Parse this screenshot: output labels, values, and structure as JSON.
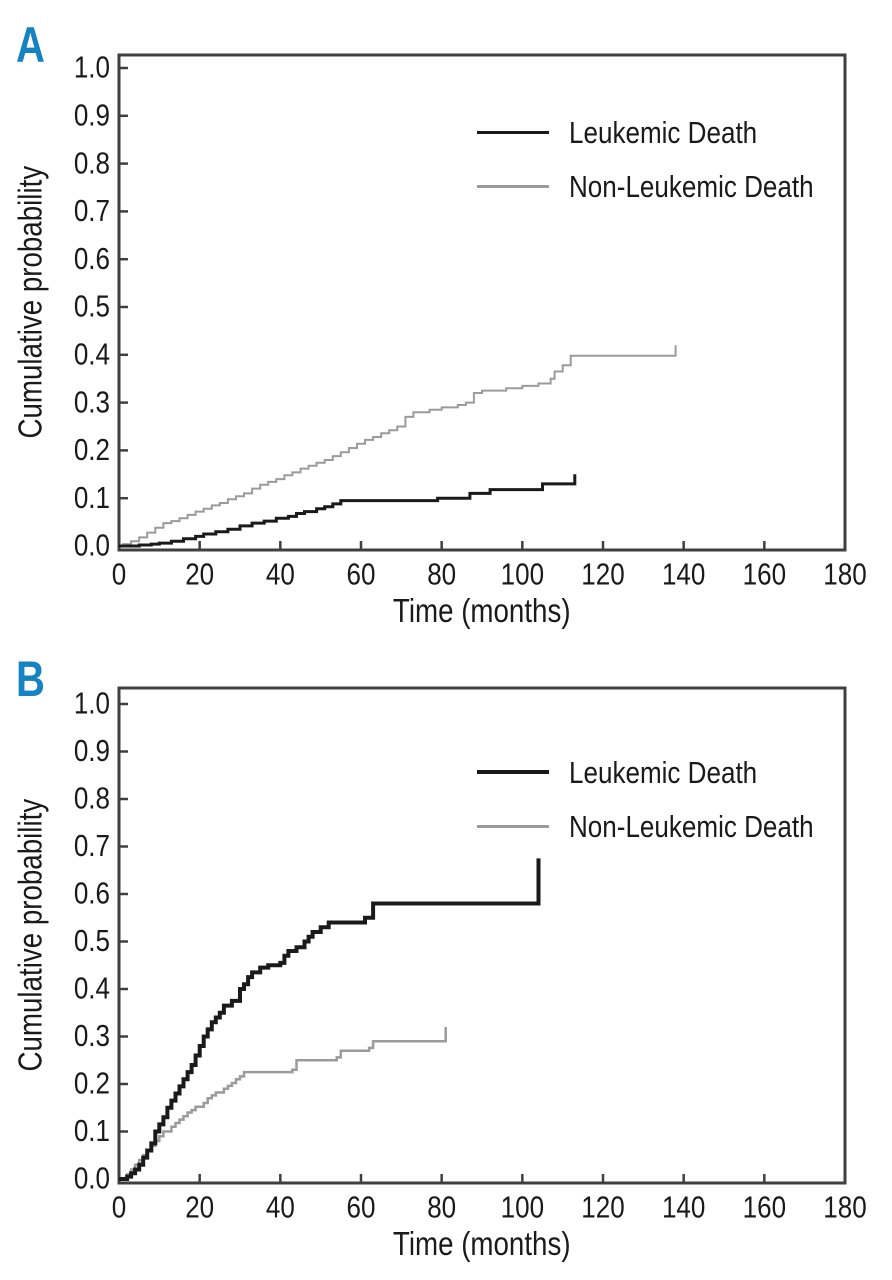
{
  "background": "#ffffff",
  "colors": {
    "panel_label": "#1583c1",
    "axis": "#3f3f3f",
    "black_series": "#1a1a1a",
    "gray_series": "#9b9b9b"
  },
  "panels": [
    {
      "label": "A",
      "y_axis_label": "Cumulative probability",
      "x_axis_label": "Time (months)",
      "legend": [
        {
          "label": "Leukemic Death"
        },
        {
          "label": "Non-Leukemic Death"
        }
      ]
    },
    {
      "label": "B",
      "y_axis_label": "Cumulative probability",
      "x_axis_label": "Time (months)",
      "legend": [
        {
          "label": "Leukemic Death"
        },
        {
          "label": "Non-Leukemic Death"
        }
      ]
    }
  ],
  "chart_data": [
    {
      "panel": "A",
      "type": "line",
      "subtype": "step",
      "title": "",
      "xlabel": "Time (months)",
      "ylabel": "Cumulative probability",
      "xlim": [
        0,
        180
      ],
      "ylim": [
        0.0,
        1.0
      ],
      "xticks": [
        0,
        20,
        40,
        60,
        80,
        100,
        120,
        140,
        160,
        180
      ],
      "xtick_labels": [
        "0",
        "20",
        "40",
        "60",
        "80",
        "100",
        "120",
        "140",
        "160",
        "180"
      ],
      "yticks": [
        0.0,
        0.1,
        0.2,
        0.3,
        0.4,
        0.5,
        0.6,
        0.7,
        0.8,
        0.9,
        1.0
      ],
      "ytick_labels": [
        "0.0",
        "0.1",
        "0.2",
        "0.3",
        "0.4",
        "0.5",
        "0.6",
        "0.7",
        "0.8",
        "0.9",
        "1.0"
      ],
      "grid": false,
      "legend_position": "upper-right-inside",
      "series": [
        {
          "name": "Leukemic Death",
          "color": "#1a1a1a",
          "line_width": 3,
          "points": [
            [
              5,
              0.002
            ],
            [
              8,
              0.004
            ],
            [
              10,
              0.006
            ],
            [
              13,
              0.01
            ],
            [
              16,
              0.015
            ],
            [
              19,
              0.02
            ],
            [
              21,
              0.025
            ],
            [
              24,
              0.03
            ],
            [
              27,
              0.035
            ],
            [
              30,
              0.042
            ],
            [
              33,
              0.048
            ],
            [
              36,
              0.052
            ],
            [
              39,
              0.058
            ],
            [
              42,
              0.062
            ],
            [
              44,
              0.068
            ],
            [
              46,
              0.072
            ],
            [
              49,
              0.078
            ],
            [
              51,
              0.082
            ],
            [
              53,
              0.088
            ],
            [
              55,
              0.095
            ],
            [
              79,
              0.1
            ],
            [
              87,
              0.11
            ],
            [
              92,
              0.118
            ],
            [
              105,
              0.13
            ],
            [
              113,
              0.15
            ]
          ]
        },
        {
          "name": "Non-Leukemic Death",
          "color": "#9b9b9b",
          "line_width": 2,
          "points": [
            [
              1,
              0.004
            ],
            [
              3,
              0.01
            ],
            [
              5,
              0.018
            ],
            [
              7,
              0.028
            ],
            [
              9,
              0.038
            ],
            [
              11,
              0.048
            ],
            [
              13,
              0.052
            ],
            [
              15,
              0.058
            ],
            [
              17,
              0.065
            ],
            [
              19,
              0.072
            ],
            [
              21,
              0.078
            ],
            [
              23,
              0.085
            ],
            [
              25,
              0.09
            ],
            [
              27,
              0.098
            ],
            [
              29,
              0.104
            ],
            [
              31,
              0.11
            ],
            [
              33,
              0.12
            ],
            [
              35,
              0.128
            ],
            [
              37,
              0.134
            ],
            [
              39,
              0.14
            ],
            [
              41,
              0.148
            ],
            [
              43,
              0.154
            ],
            [
              45,
              0.162
            ],
            [
              47,
              0.168
            ],
            [
              49,
              0.174
            ],
            [
              51,
              0.18
            ],
            [
              53,
              0.188
            ],
            [
              55,
              0.196
            ],
            [
              57,
              0.205
            ],
            [
              59,
              0.214
            ],
            [
              61,
              0.222
            ],
            [
              63,
              0.228
            ],
            [
              65,
              0.236
            ],
            [
              67,
              0.242
            ],
            [
              69,
              0.25
            ],
            [
              71,
              0.27
            ],
            [
              73,
              0.28
            ],
            [
              77,
              0.285
            ],
            [
              80,
              0.29
            ],
            [
              84,
              0.295
            ],
            [
              86,
              0.3
            ],
            [
              88,
              0.32
            ],
            [
              90,
              0.325
            ],
            [
              96,
              0.33
            ],
            [
              100,
              0.335
            ],
            [
              104,
              0.34
            ],
            [
              107,
              0.35
            ],
            [
              108,
              0.365
            ],
            [
              110,
              0.378
            ],
            [
              112,
              0.398
            ],
            [
              138,
              0.42
            ]
          ]
        }
      ]
    },
    {
      "panel": "B",
      "type": "line",
      "subtype": "step",
      "title": "",
      "xlabel": "Time (months)",
      "ylabel": "Cumulative probability",
      "xlim": [
        0,
        180
      ],
      "ylim": [
        0.0,
        1.0
      ],
      "xticks": [
        0,
        20,
        40,
        60,
        80,
        100,
        120,
        140,
        160,
        180
      ],
      "xtick_labels": [
        "0",
        "20",
        "40",
        "60",
        "80",
        "100",
        "120",
        "140",
        "160",
        "180"
      ],
      "yticks": [
        0.0,
        0.1,
        0.2,
        0.3,
        0.4,
        0.5,
        0.6,
        0.7,
        0.8,
        0.9,
        1.0
      ],
      "ytick_labels": [
        "0.0",
        "0.1",
        "0.2",
        "0.3",
        "0.4",
        "0.5",
        "0.6",
        "0.7",
        "0.8",
        "0.9",
        "1.0"
      ],
      "grid": false,
      "legend_position": "upper-right-inside",
      "series": [
        {
          "name": "Leukemic Death",
          "color": "#1a1a1a",
          "line_width": 4,
          "points": [
            [
              2,
              0.005
            ],
            [
              3,
              0.012
            ],
            [
              4,
              0.02
            ],
            [
              5,
              0.03
            ],
            [
              6,
              0.045
            ],
            [
              7,
              0.06
            ],
            [
              8,
              0.075
            ],
            [
              9,
              0.1
            ],
            [
              10,
              0.115
            ],
            [
              11,
              0.13
            ],
            [
              12,
              0.15
            ],
            [
              13,
              0.165
            ],
            [
              14,
              0.18
            ],
            [
              15,
              0.195
            ],
            [
              16,
              0.21
            ],
            [
              17,
              0.225
            ],
            [
              18,
              0.24
            ],
            [
              19,
              0.26
            ],
            [
              20,
              0.28
            ],
            [
              21,
              0.3
            ],
            [
              22,
              0.315
            ],
            [
              23,
              0.33
            ],
            [
              24,
              0.34
            ],
            [
              25,
              0.35
            ],
            [
              26,
              0.365
            ],
            [
              28,
              0.375
            ],
            [
              30,
              0.4
            ],
            [
              31,
              0.41
            ],
            [
              32,
              0.425
            ],
            [
              33,
              0.435
            ],
            [
              35,
              0.445
            ],
            [
              37,
              0.45
            ],
            [
              40,
              0.455
            ],
            [
              41,
              0.47
            ],
            [
              42,
              0.48
            ],
            [
              44,
              0.488
            ],
            [
              46,
              0.5
            ],
            [
              47,
              0.51
            ],
            [
              48,
              0.52
            ],
            [
              50,
              0.53
            ],
            [
              52,
              0.54
            ],
            [
              61,
              0.55
            ],
            [
              63,
              0.58
            ],
            [
              104,
              0.675
            ]
          ]
        },
        {
          "name": "Non-Leukemic Death",
          "color": "#9b9b9b",
          "line_width": 2.5,
          "points": [
            [
              2,
              0.01
            ],
            [
              3,
              0.02
            ],
            [
              4,
              0.03
            ],
            [
              5,
              0.04
            ],
            [
              6,
              0.05
            ],
            [
              7,
              0.06
            ],
            [
              8,
              0.07
            ],
            [
              9,
              0.08
            ],
            [
              10,
              0.09
            ],
            [
              11,
              0.1
            ],
            [
              13,
              0.11
            ],
            [
              14,
              0.118
            ],
            [
              15,
              0.125
            ],
            [
              16,
              0.132
            ],
            [
              17,
              0.14
            ],
            [
              18,
              0.145
            ],
            [
              19,
              0.152
            ],
            [
              21,
              0.16
            ],
            [
              22,
              0.17
            ],
            [
              23,
              0.176
            ],
            [
              24,
              0.182
            ],
            [
              26,
              0.19
            ],
            [
              27,
              0.196
            ],
            [
              28,
              0.202
            ],
            [
              29,
              0.21
            ],
            [
              30,
              0.216
            ],
            [
              31,
              0.225
            ],
            [
              43,
              0.23
            ],
            [
              44,
              0.25
            ],
            [
              54,
              0.256
            ],
            [
              55,
              0.27
            ],
            [
              62,
              0.276
            ],
            [
              63,
              0.29
            ],
            [
              81,
              0.32
            ]
          ]
        }
      ]
    }
  ]
}
